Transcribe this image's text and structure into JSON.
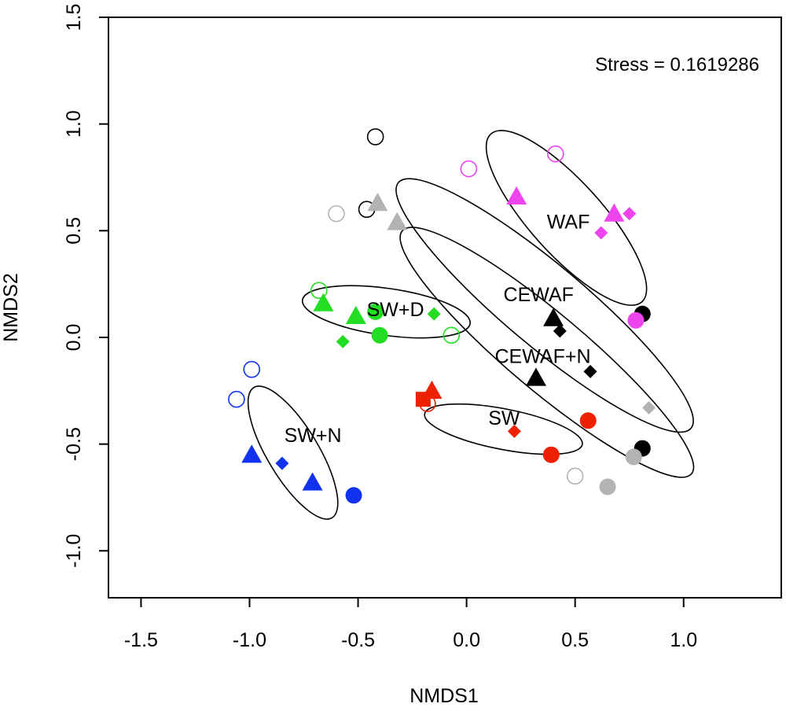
{
  "chart_data": {
    "type": "scatter",
    "title": "",
    "xlabel": "NMDS1",
    "ylabel": "NMDS2",
    "xlim": [
      -1.65,
      1.45
    ],
    "ylim": [
      -1.22,
      1.5
    ],
    "x_ticks": [
      -1.5,
      -1.0,
      -0.5,
      0.0,
      0.5,
      1.0
    ],
    "x_tick_labels": [
      "-1.5",
      "-1.0",
      "-0.5",
      "0.0",
      "0.5",
      "1.0"
    ],
    "y_ticks": [
      -1.0,
      -0.5,
      0.0,
      0.5,
      1.0,
      1.5
    ],
    "y_tick_labels": [
      "-1.0",
      "-0.5",
      "0.0",
      "0.5",
      "1.0",
      "1.5"
    ],
    "annotation": "Stress = 0.1619286",
    "colors": {
      "black": "#000000",
      "grey": "#b3b3b3",
      "magenta": "#ee44ee",
      "green": "#22dd22",
      "red": "#ee2200",
      "blue": "#1133ee"
    },
    "groups": [
      {
        "name": "WAF",
        "label_x": 0.37,
        "label_y": 0.51,
        "ellipse": {
          "cx": 0.46,
          "cy": 0.56,
          "rx": 0.52,
          "ry": 0.17,
          "angle": -48
        }
      },
      {
        "name": "CEWAF",
        "label_x": 0.17,
        "label_y": 0.17,
        "ellipse": {
          "cx": 0.36,
          "cy": 0.15,
          "rx": 0.88,
          "ry": 0.19,
          "angle": -40
        }
      },
      {
        "name": "CEWAF+N",
        "label_x": 0.13,
        "label_y": -0.12,
        "ellipse": {
          "cx": 0.37,
          "cy": -0.07,
          "rx": 0.87,
          "ry": 0.18,
          "angle": -40
        }
      },
      {
        "name": "SW+D",
        "label_x": -0.46,
        "label_y": 0.1,
        "ellipse": {
          "cx": -0.37,
          "cy": 0.12,
          "rx": 0.39,
          "ry": 0.11,
          "angle": -8
        }
      },
      {
        "name": "SW",
        "label_x": 0.1,
        "label_y": -0.41,
        "ellipse": {
          "cx": 0.17,
          "cy": -0.43,
          "rx": 0.37,
          "ry": 0.095,
          "angle": -11
        }
      },
      {
        "name": "SW+N",
        "label_x": -0.84,
        "label_y": -0.49,
        "ellipse": {
          "cx": -0.8,
          "cy": -0.54,
          "rx": 0.35,
          "ry": 0.12,
          "angle": -59
        }
      }
    ],
    "points": [
      {
        "group": "CEWAF",
        "x": -0.42,
        "y": 0.94,
        "shape": "open-circle",
        "color": "black"
      },
      {
        "group": "CEWAF",
        "x": -0.46,
        "y": 0.6,
        "shape": "open-circle",
        "color": "black"
      },
      {
        "group": "CEWAF",
        "x": 0.81,
        "y": 0.11,
        "shape": "circle",
        "color": "black"
      },
      {
        "group": "CEWAF",
        "x": 0.4,
        "y": 0.09,
        "shape": "triangle",
        "color": "black"
      },
      {
        "group": "CEWAF",
        "x": 0.43,
        "y": 0.03,
        "shape": "diamond",
        "color": "black"
      },
      {
        "group": "CEWAF",
        "x": 0.32,
        "y": -0.19,
        "shape": "triangle",
        "color": "black"
      },
      {
        "group": "CEWAF",
        "x": 0.57,
        "y": -0.16,
        "shape": "diamond",
        "color": "black"
      },
      {
        "group": "CEWAF",
        "x": 0.81,
        "y": -0.52,
        "shape": "circle",
        "color": "black"
      },
      {
        "group": "CEWAF+N",
        "x": -0.6,
        "y": 0.58,
        "shape": "open-circle",
        "color": "grey"
      },
      {
        "group": "CEWAF+N",
        "x": -0.41,
        "y": 0.63,
        "shape": "triangle",
        "color": "grey"
      },
      {
        "group": "CEWAF+N",
        "x": -0.32,
        "y": 0.54,
        "shape": "triangle",
        "color": "grey"
      },
      {
        "group": "CEWAF+N",
        "x": 0.84,
        "y": -0.33,
        "shape": "diamond",
        "color": "grey"
      },
      {
        "group": "CEWAF+N",
        "x": 0.77,
        "y": -0.56,
        "shape": "circle",
        "color": "grey"
      },
      {
        "group": "CEWAF+N",
        "x": 0.5,
        "y": -0.65,
        "shape": "open-circle",
        "color": "grey"
      },
      {
        "group": "CEWAF+N",
        "x": 0.65,
        "y": -0.7,
        "shape": "circle",
        "color": "grey"
      },
      {
        "group": "WAF",
        "x": 0.01,
        "y": 0.79,
        "shape": "open-circle",
        "color": "magenta"
      },
      {
        "group": "WAF",
        "x": 0.41,
        "y": 0.86,
        "shape": "open-circle",
        "color": "magenta"
      },
      {
        "group": "WAF",
        "x": 0.23,
        "y": 0.66,
        "shape": "triangle",
        "color": "magenta"
      },
      {
        "group": "WAF",
        "x": 0.68,
        "y": 0.58,
        "shape": "triangle",
        "color": "magenta"
      },
      {
        "group": "WAF",
        "x": 0.75,
        "y": 0.58,
        "shape": "diamond",
        "color": "magenta"
      },
      {
        "group": "WAF",
        "x": 0.62,
        "y": 0.49,
        "shape": "diamond",
        "color": "magenta"
      },
      {
        "group": "WAF",
        "x": 0.78,
        "y": 0.08,
        "shape": "circle",
        "color": "magenta"
      },
      {
        "group": "SW+D",
        "x": -0.68,
        "y": 0.22,
        "shape": "open-circle",
        "color": "green"
      },
      {
        "group": "SW+D",
        "x": -0.66,
        "y": 0.16,
        "shape": "triangle",
        "color": "green"
      },
      {
        "group": "SW+D",
        "x": -0.51,
        "y": 0.1,
        "shape": "triangle",
        "color": "green"
      },
      {
        "group": "SW+D",
        "x": -0.42,
        "y": 0.12,
        "shape": "circle",
        "color": "green"
      },
      {
        "group": "SW+D",
        "x": -0.4,
        "y": 0.01,
        "shape": "circle",
        "color": "green"
      },
      {
        "group": "SW+D",
        "x": -0.57,
        "y": -0.02,
        "shape": "diamond",
        "color": "green"
      },
      {
        "group": "SW+D",
        "x": -0.15,
        "y": 0.11,
        "shape": "diamond",
        "color": "green"
      },
      {
        "group": "SW+D",
        "x": -0.07,
        "y": 0.01,
        "shape": "open-circle",
        "color": "green"
      },
      {
        "group": "SW",
        "x": -0.2,
        "y": -0.29,
        "shape": "square",
        "color": "red"
      },
      {
        "group": "SW",
        "x": -0.16,
        "y": -0.25,
        "shape": "triangle",
        "color": "red"
      },
      {
        "group": "SW",
        "x": -0.18,
        "y": -0.31,
        "shape": "open-circle",
        "color": "red"
      },
      {
        "group": "SW",
        "x": 0.22,
        "y": -0.44,
        "shape": "diamond",
        "color": "red"
      },
      {
        "group": "SW",
        "x": 0.56,
        "y": -0.39,
        "shape": "circle",
        "color": "red"
      },
      {
        "group": "SW",
        "x": 0.39,
        "y": -0.55,
        "shape": "circle",
        "color": "red"
      },
      {
        "group": "SW+N",
        "x": -0.99,
        "y": -0.15,
        "shape": "open-circle",
        "color": "blue"
      },
      {
        "group": "SW+N",
        "x": -1.06,
        "y": -0.29,
        "shape": "open-circle",
        "color": "blue"
      },
      {
        "group": "SW+N",
        "x": -0.99,
        "y": -0.55,
        "shape": "triangle",
        "color": "blue"
      },
      {
        "group": "SW+N",
        "x": -0.85,
        "y": -0.59,
        "shape": "diamond",
        "color": "blue"
      },
      {
        "group": "SW+N",
        "x": -0.71,
        "y": -0.68,
        "shape": "triangle",
        "color": "blue"
      },
      {
        "group": "SW+N",
        "x": -0.52,
        "y": -0.74,
        "shape": "circle",
        "color": "blue"
      }
    ]
  }
}
